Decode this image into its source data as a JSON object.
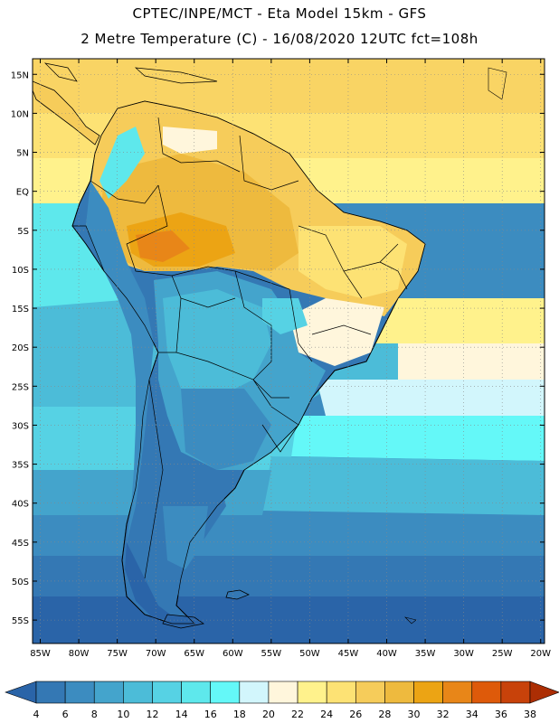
{
  "header": {
    "line1": "CPTEC/INPE/MCT -  Eta Model 15km - GFS",
    "line2": "2 Metre Temperature (C) - 16/08/2020 12UTC fct=108h"
  },
  "map": {
    "lat_ticks": [
      "15N",
      "10N",
      "5N",
      "EQ",
      "5S",
      "10S",
      "15S",
      "20S",
      "25S",
      "30S",
      "35S",
      "40S",
      "45S",
      "50S",
      "55S"
    ],
    "lat_values": [
      15,
      10,
      5,
      0,
      -5,
      -10,
      -15,
      -20,
      -25,
      -30,
      -35,
      -40,
      -45,
      -50,
      -55
    ],
    "lon_ticks": [
      "85W",
      "80W",
      "75W",
      "70W",
      "65W",
      "60W",
      "55W",
      "50W",
      "45W",
      "40W",
      "35W",
      "30W",
      "25W",
      "20W"
    ],
    "lon_values": [
      -85,
      -80,
      -75,
      -70,
      -65,
      -60,
      -55,
      -50,
      -45,
      -40,
      -35,
      -30,
      -25,
      -20
    ],
    "lat_range": [
      -58,
      17
    ],
    "lon_range": [
      -86,
      -19.5
    ]
  },
  "colorbar": {
    "labels": [
      "4",
      "6",
      "8",
      "10",
      "12",
      "14",
      "16",
      "18",
      "20",
      "22",
      "24",
      "26",
      "28",
      "30",
      "32",
      "34",
      "36",
      "38"
    ],
    "colors": [
      "#2a64a8",
      "#3478b4",
      "#3c8cc0",
      "#44a4cc",
      "#4cbcd8",
      "#56d2e4",
      "#5ee8ec",
      "#64f8f8",
      "#d2f6fc",
      "#fff6dc",
      "#fff28c",
      "#fde274",
      "#f6cc5a",
      "#eeba3e",
      "#eca414",
      "#e88618",
      "#de5a0a",
      "#c8420a",
      "#ac2e04"
    ]
  }
}
